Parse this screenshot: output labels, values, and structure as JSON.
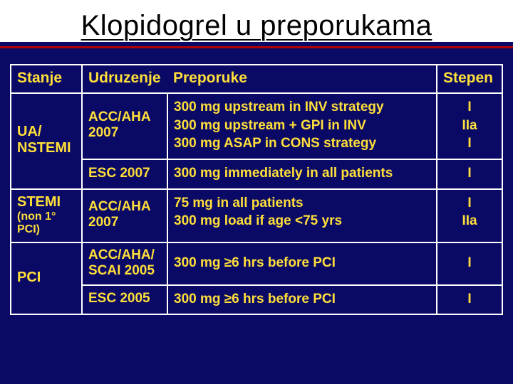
{
  "colors": {
    "slide_bg": "#0a0a66",
    "text": "#ffdf3a",
    "title_text": "#000000",
    "title_bg": "#ffffff",
    "rule": "#b30000",
    "border": "#ffffff"
  },
  "title": "Klopidogrel u preporukama",
  "headers": {
    "c1": "Stanje",
    "c2": "Udruzenje",
    "c3": "Preporuke",
    "c4": "Stepen"
  },
  "rows": {
    "r1": {
      "stanje": "UA/ NSTEMI",
      "org": "ACC/AHA 2007",
      "rec_l1": "300 mg upstream in INV strategy",
      "rec_l2": "300 mg upstream + GPI in INV",
      "rec_l3": "300 mg ASAP in CONS strategy",
      "st_l1": "I",
      "st_l2": "IIa",
      "st_l3": "I"
    },
    "r2": {
      "org": "ESC 2007",
      "rec": "300 mg immediately in all patients",
      "st_blank": "",
      "st": "I"
    },
    "r3": {
      "stanje_l1": "STEMI",
      "stanje_l2": "(non 1° PCI)",
      "org": "ACC/AHA 2007",
      "rec_l1": "75 mg in all patients",
      "rec_l2": "300 mg load if age <75 yrs",
      "st_l1": "I",
      "st_l2": "IIa"
    },
    "r4": {
      "stanje": "PCI",
      "org": "ACC/AHA/ SCAI 2005",
      "rec": "300 mg ≥6 hrs before PCI",
      "st": "I"
    },
    "r5": {
      "org": "ESC 2005",
      "rec": "300 mg ≥6 hrs before PCI",
      "st": "I"
    }
  }
}
